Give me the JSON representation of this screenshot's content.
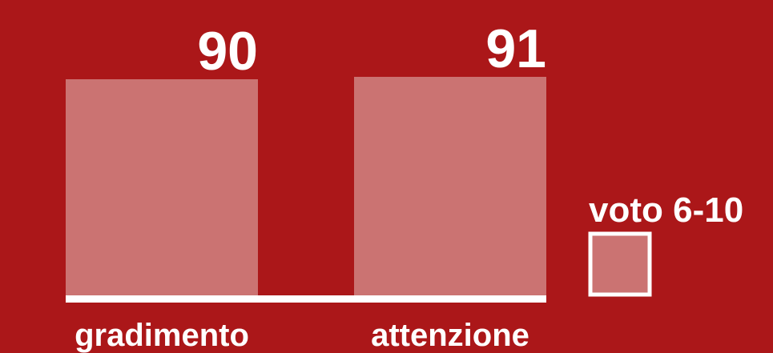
{
  "chart_data": {
    "type": "bar",
    "categories": [
      "gradimento",
      "attenzione"
    ],
    "series": [
      {
        "name": "voto 6-10",
        "values": [
          90,
          91
        ]
      }
    ],
    "value_labels": [
      "90",
      "91"
    ],
    "ylim": [
      0,
      100
    ],
    "grid": false,
    "legend_position": "right",
    "colors": {
      "background": "#ab1719",
      "bar": "#cb7372",
      "axis": "#ffffff",
      "text": "#ffffff"
    }
  }
}
